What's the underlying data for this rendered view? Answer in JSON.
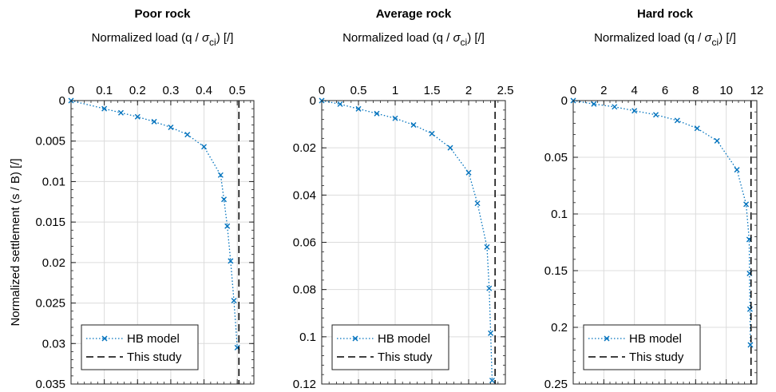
{
  "figure": {
    "ylabel": "Normalized settlement (s / B) [/]"
  },
  "chart_data": [
    {
      "type": "line",
      "title": "Poor rock",
      "xlabel_prefix": "Normalized load (q / ",
      "xlabel_symbol": "σ",
      "xlabel_sub": "ci",
      "xlabel_suffix": ") [/]",
      "xlim": [
        0,
        0.55
      ],
      "ylim": [
        0,
        0.035
      ],
      "y_reversed": true,
      "x_axis_position": "top",
      "xticks": [
        0,
        0.1,
        0.2,
        0.3,
        0.4,
        0.5
      ],
      "xtick_labels": [
        "0",
        "0.1",
        "0.2",
        "0.3",
        "0.4",
        "0.5"
      ],
      "yticks": [
        0,
        0.005,
        0.01,
        0.015,
        0.02,
        0.025,
        0.03,
        0.035
      ],
      "ytick_labels": [
        "0",
        "0.005",
        "0.01",
        "0.015",
        "0.02",
        "0.025",
        "0.03",
        "0.035"
      ],
      "grid": true,
      "legend_position": "bottom-left",
      "series": [
        {
          "name": "HB model",
          "style": "dotted-x",
          "color": "#0072BD",
          "x": [
            0,
            0.1,
            0.15,
            0.2,
            0.25,
            0.3,
            0.35,
            0.4,
            0.45,
            0.46,
            0.47,
            0.48,
            0.49,
            0.5
          ],
          "y": [
            0,
            0.001,
            0.0015,
            0.002,
            0.0026,
            0.0033,
            0.0042,
            0.0057,
            0.0092,
            0.0122,
            0.0155,
            0.0198,
            0.0247,
            0.0305
          ]
        },
        {
          "name": "This study",
          "style": "dashed",
          "color": "#000000",
          "x": [
            0.505,
            0.505
          ],
          "y": [
            0,
            0.035
          ]
        }
      ]
    },
    {
      "type": "line",
      "title": "Average rock",
      "xlabel_prefix": "Normalized load (q / ",
      "xlabel_symbol": "σ",
      "xlabel_sub": "ci",
      "xlabel_suffix": ") [/]",
      "xlim": [
        0,
        2.5
      ],
      "ylim": [
        0,
        0.12
      ],
      "y_reversed": true,
      "x_axis_position": "top",
      "xticks": [
        0,
        0.5,
        1,
        1.5,
        2,
        2.5
      ],
      "xtick_labels": [
        "0",
        "0.5",
        "1",
        "1.5",
        "2",
        "2.5"
      ],
      "yticks": [
        0,
        0.02,
        0.04,
        0.06,
        0.08,
        0.1,
        0.12
      ],
      "ytick_labels": [
        "0",
        "0.02",
        "0.04",
        "0.06",
        "0.08",
        "0.1",
        "0.12"
      ],
      "grid": true,
      "legend_position": "bottom-left",
      "series": [
        {
          "name": "HB model",
          "style": "dotted-x",
          "color": "#0072BD",
          "x": [
            0,
            0.25,
            0.5,
            0.75,
            1.0,
            1.25,
            1.5,
            1.75,
            2.0,
            2.12,
            2.25,
            2.28,
            2.3,
            2.32
          ],
          "y": [
            0,
            0.0015,
            0.0035,
            0.0055,
            0.0075,
            0.0103,
            0.014,
            0.02,
            0.0305,
            0.0435,
            0.062,
            0.0795,
            0.0985,
            0.1185
          ]
        },
        {
          "name": "This study",
          "style": "dashed",
          "color": "#000000",
          "x": [
            2.36,
            2.36
          ],
          "y": [
            0,
            0.12
          ]
        }
      ]
    },
    {
      "type": "line",
      "title": "Hard rock",
      "xlabel_prefix": "Normalized load (q / ",
      "xlabel_symbol": "σ",
      "xlabel_sub": "ci",
      "xlabel_suffix": ") [/]",
      "xlim": [
        0,
        12
      ],
      "ylim": [
        0,
        0.25
      ],
      "y_reversed": true,
      "x_axis_position": "top",
      "xticks": [
        0,
        2,
        4,
        6,
        8,
        10,
        12
      ],
      "xtick_labels": [
        "0",
        "2",
        "4",
        "6",
        "8",
        "10",
        "12"
      ],
      "yticks": [
        0,
        0.05,
        0.1,
        0.15,
        0.2,
        0.25
      ],
      "ytick_labels": [
        "0",
        "0.05",
        "0.1",
        "0.15",
        "0.2",
        "0.25"
      ],
      "grid": true,
      "legend_position": "bottom-left",
      "series": [
        {
          "name": "HB model",
          "style": "dotted-x",
          "color": "#0072BD",
          "x": [
            0,
            1.35,
            2.7,
            4.0,
            5.4,
            6.8,
            8.1,
            9.4,
            10.7,
            11.3,
            11.5,
            11.52,
            11.55,
            11.58
          ],
          "y": [
            0,
            0.003,
            0.0055,
            0.009,
            0.0125,
            0.0175,
            0.0245,
            0.0355,
            0.061,
            0.0915,
            0.1225,
            0.1525,
            0.184,
            0.2155
          ]
        },
        {
          "name": "This study",
          "style": "dashed",
          "color": "#000000",
          "x": [
            11.62,
            11.62
          ],
          "y": [
            0,
            0.25
          ]
        }
      ]
    }
  ]
}
